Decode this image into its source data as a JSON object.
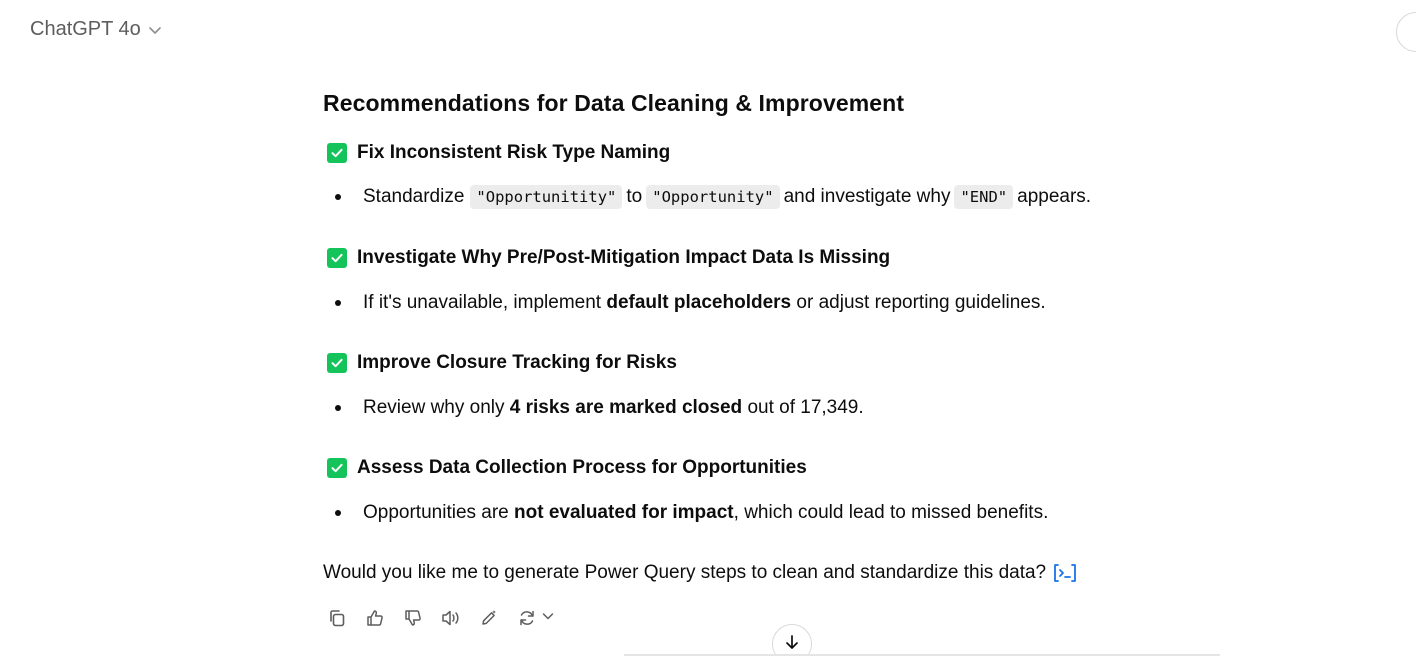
{
  "header": {
    "model_label": "ChatGPT 4o"
  },
  "message": {
    "heading": "Recommendations for Data Cleaning & Improvement",
    "sections": [
      {
        "title": "Fix Inconsistent Risk Type Naming",
        "bullet": {
          "t1": "Standardize",
          "code1": "\"Opportunitity\"",
          "t2": "to",
          "code2": "\"Opportunity\"",
          "t3": "and investigate why",
          "code3": "\"END\"",
          "t4": "appears."
        }
      },
      {
        "title": "Investigate Why Pre/Post-Mitigation Impact Data Is Missing",
        "bullet": {
          "t1": "If it's unavailable, implement",
          "b1": "default placeholders",
          "t2": "or adjust reporting guidelines."
        }
      },
      {
        "title": "Improve Closure Tracking for Risks",
        "bullet": {
          "t1": "Review why only",
          "b1": "4 risks are marked closed",
          "t2": "out of 17,349."
        }
      },
      {
        "title": "Assess Data Collection Process for Opportunities",
        "bullet": {
          "t1": "Opportunities are",
          "b1": "not evaluated for impact",
          "t2": ", which could lead to missed benefits."
        }
      }
    ],
    "question": "Would you like me to generate Power Query steps to clean and standardize this data?"
  },
  "icons": {
    "check": "check-box-icon",
    "copy": "copy-icon",
    "thumbs_up": "thumbs-up-icon",
    "thumbs_down": "thumbs-down-icon",
    "read_aloud": "speaker-icon",
    "edit": "edit-icon",
    "regenerate": "regenerate-icon",
    "scroll_down": "arrow-down-icon",
    "citation": "citation-icon"
  },
  "colors": {
    "check_green": "#14c45a",
    "text": "#0d0d0d",
    "muted": "#5d5d5d",
    "code_bg": "#ececec",
    "link_blue": "#1a73e8"
  }
}
